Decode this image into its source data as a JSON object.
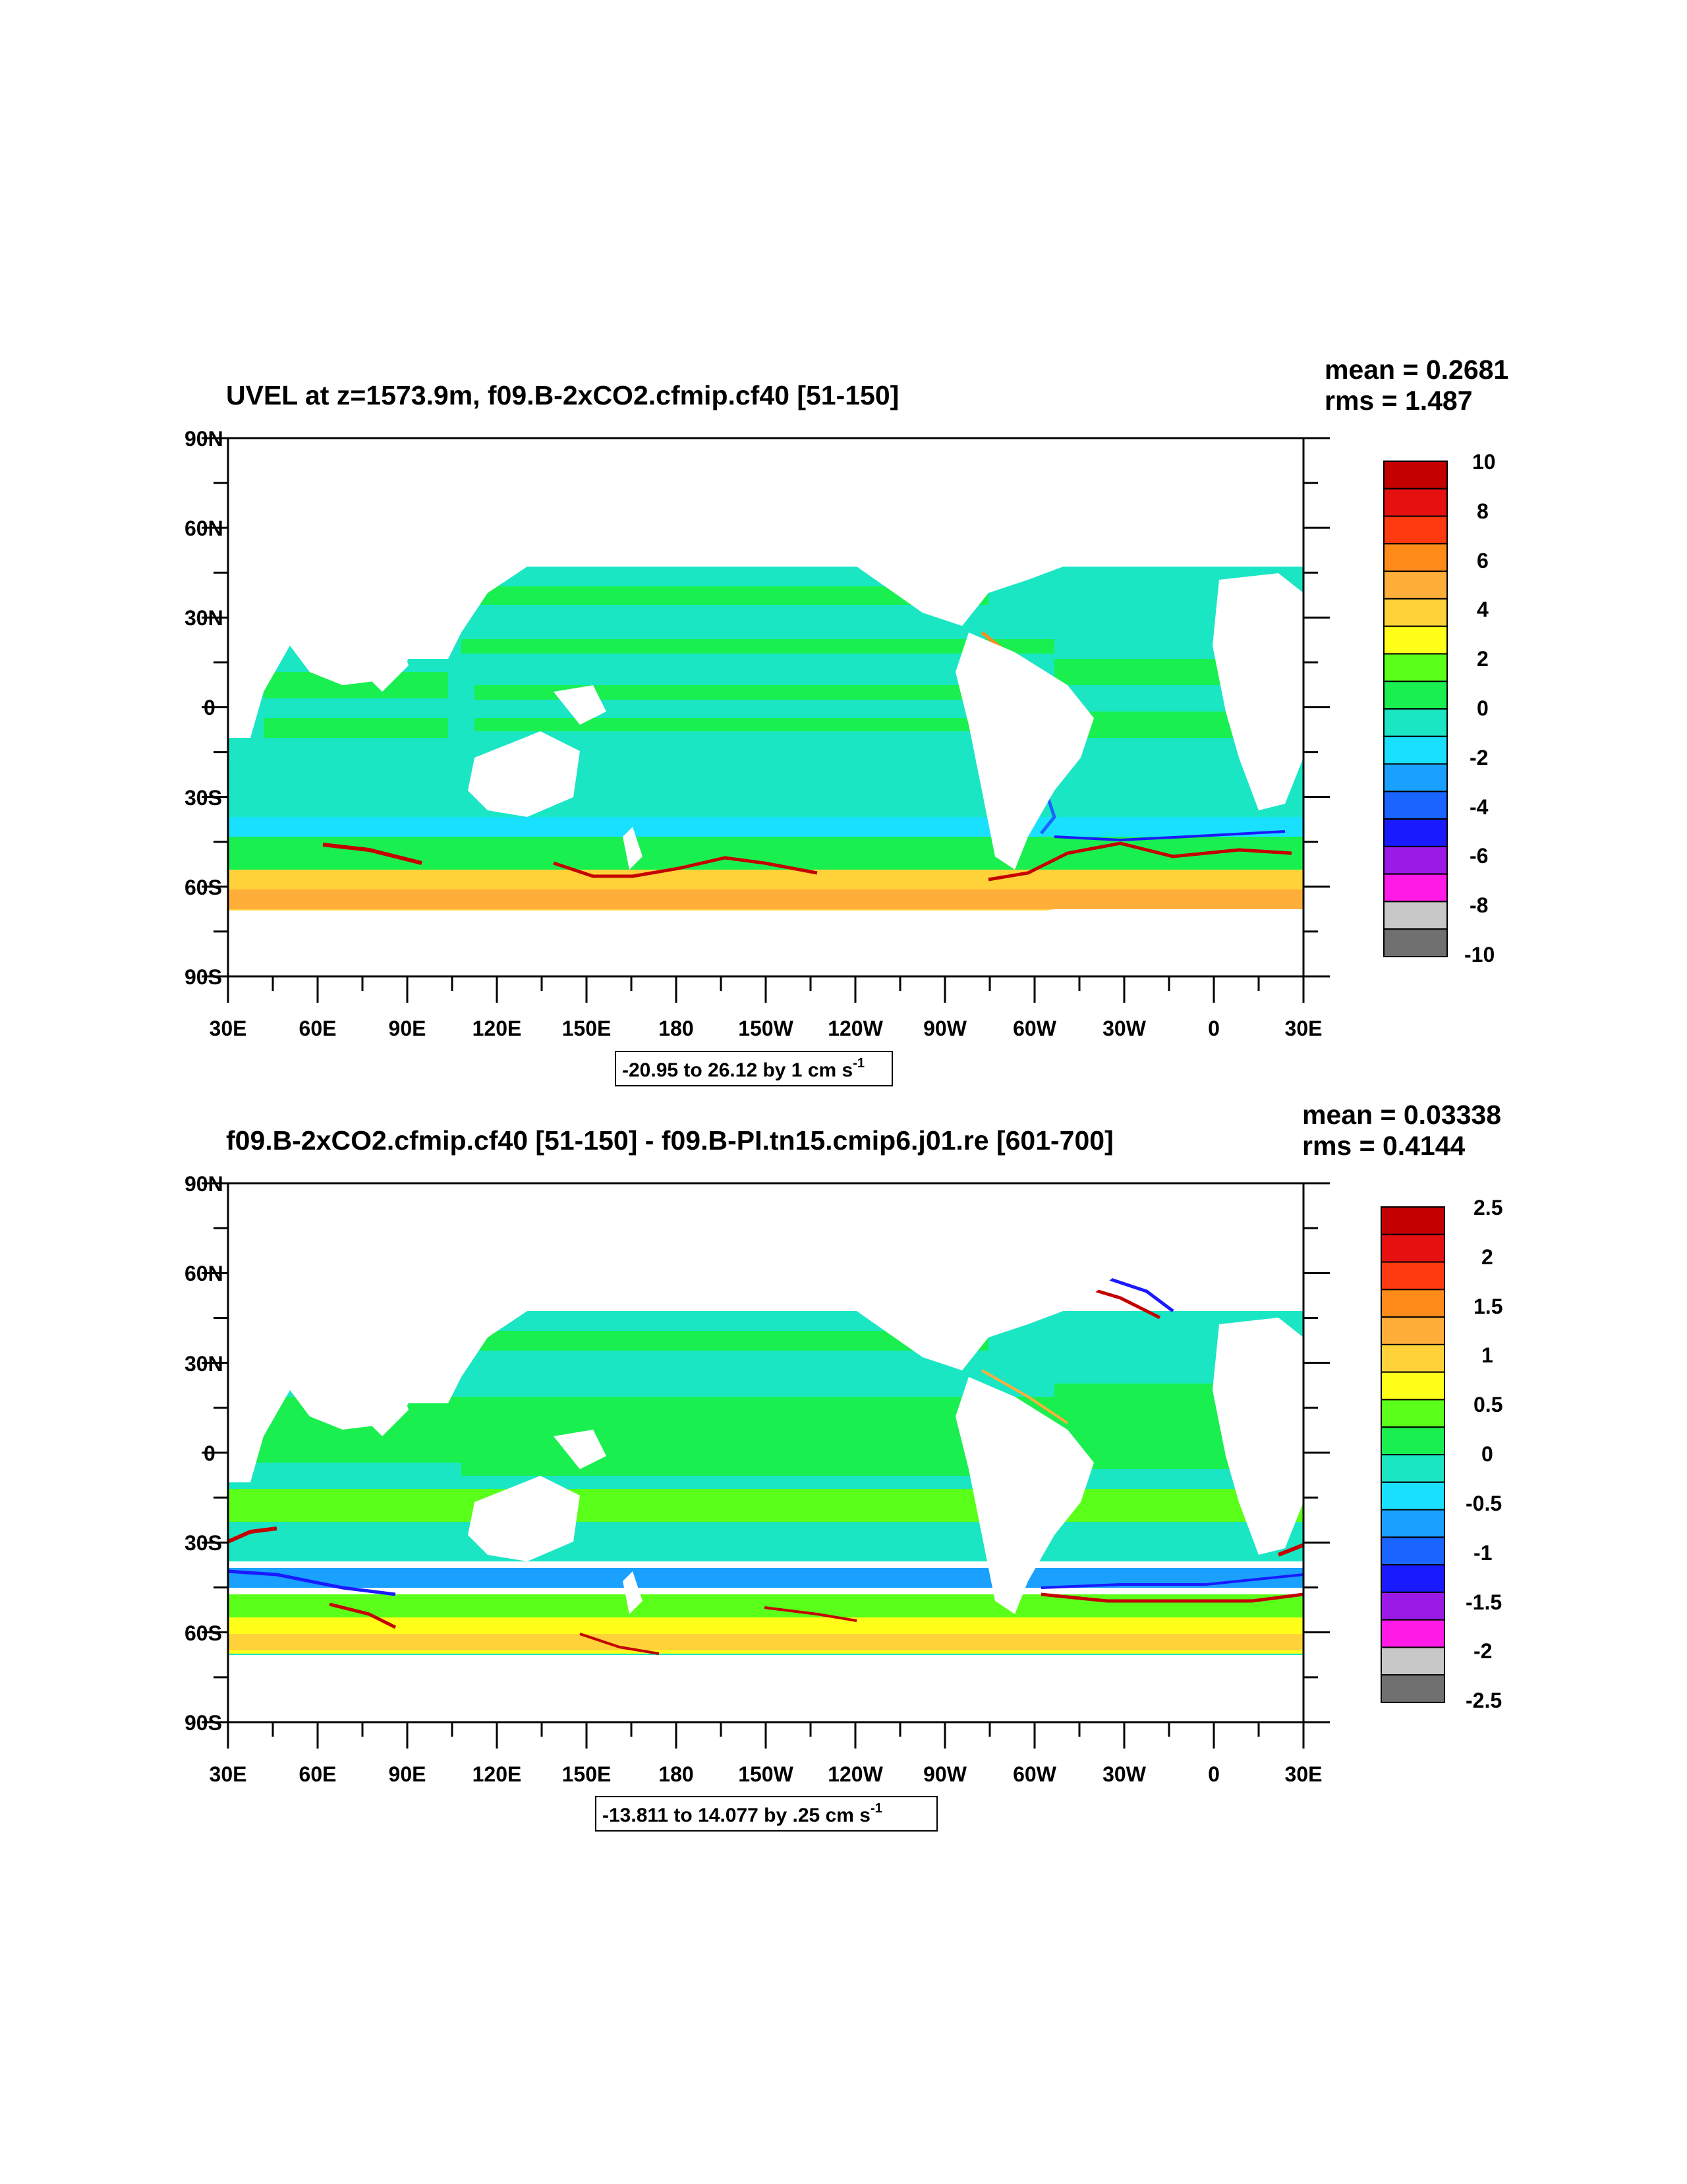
{
  "panels": [
    {
      "title": "UVEL at z=1573.9m, f09.B-2xCO2.cfmip.cf40 [51-150]",
      "mean": "mean = 0.2681",
      "rms": "rms = 1.487",
      "info_main": "-20.95 to 26.12 by 1 cm s",
      "info_sup": "-1",
      "colorbar_labels": [
        "10",
        "8",
        "6",
        "4",
        "2",
        "0",
        "-2",
        "-4",
        "-6",
        "-8",
        "-10"
      ],
      "map": {
        "field": "absolute",
        "range": [
          -10,
          10
        ]
      }
    },
    {
      "title": "f09.B-2xCO2.cfmip.cf40 [51-150] - f09.B-PI.tn15.cmip6.j01.re [601-700]",
      "mean": "mean = 0.03338",
      "rms": "rms = 0.4144",
      "info_main": "-13.811 to 14.077 by .25 cm s",
      "info_sup": "-1",
      "colorbar_labels": [
        "2.5",
        "2",
        "1.5",
        "1",
        "0.5",
        "0",
        "-0.5",
        "-1",
        "-1.5",
        "-2",
        "-2.5"
      ],
      "map": {
        "field": "difference",
        "range": [
          -2.5,
          2.5
        ]
      }
    }
  ],
  "lat_labels": [
    "90N",
    "60N",
    "30N",
    "0",
    "30S",
    "60S",
    "90S"
  ],
  "lon_labels": [
    "30E",
    "60E",
    "90E",
    "120E",
    "150E",
    "180",
    "150W",
    "120W",
    "90W",
    "60W",
    "30W",
    "0",
    "30E"
  ],
  "colorbar_colors": [
    "#c40000",
    "#e61010",
    "#ff3a10",
    "#ff8c1a",
    "#ffae3a",
    "#ffd23a",
    "#ffff1a",
    "#5aff1a",
    "#1aef50",
    "#1ae6c4",
    "#1ae0ff",
    "#1aa0ff",
    "#1a64ff",
    "#1a1aff",
    "#9b1ae6",
    "#ff1ae6",
    "#c8c8c8",
    "#707070"
  ]
}
